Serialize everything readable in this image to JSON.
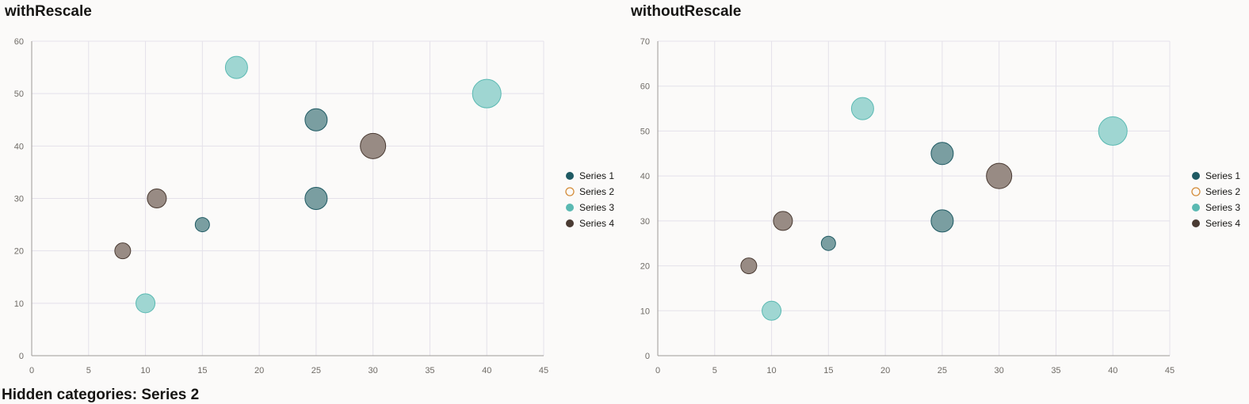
{
  "colors": {
    "grid": "#e4e1ea",
    "axis": "#9e9a96",
    "series": {
      "Series 1": "#1f5a63",
      "Series 2": "#d48d3b",
      "Series 3": "#5ab9b2",
      "Series 4": "#4a3b33"
    },
    "bubble_fill": {
      "Series 1": "#7a9ea1",
      "Series 3": "#9fd6d2",
      "Series 4": "#988b84"
    }
  },
  "footer": {
    "text": "Hidden categories: Series 2"
  },
  "chart_data": [
    {
      "type": "bubble",
      "title": "withRescale",
      "xlim": [
        0,
        45
      ],
      "ylim": [
        0,
        60
      ],
      "x_ticks": [
        "0",
        "5",
        "10",
        "15",
        "20",
        "25",
        "30",
        "35",
        "40",
        "45"
      ],
      "y_ticks": [
        "0",
        "10",
        "20",
        "30",
        "40",
        "50",
        "60"
      ],
      "grid": true,
      "legend_position": "right",
      "legend": [
        "Series 1",
        "Series 2",
        "Series 3",
        "Series 4"
      ],
      "series": [
        {
          "name": "Series 1",
          "points": [
            {
              "x": 15,
              "y": 25,
              "r": 9
            },
            {
              "x": 25,
              "y": 30,
              "r": 14
            },
            {
              "x": 25,
              "y": 45,
              "r": 14
            }
          ]
        },
        {
          "name": "Series 2",
          "points": [],
          "hidden": true
        },
        {
          "name": "Series 3",
          "points": [
            {
              "x": 10,
              "y": 10,
              "r": 12
            },
            {
              "x": 18,
              "y": 55,
              "r": 14
            },
            {
              "x": 40,
              "y": 50,
              "r": 18
            }
          ]
        },
        {
          "name": "Series 4",
          "points": [
            {
              "x": 8,
              "y": 20,
              "r": 10
            },
            {
              "x": 11,
              "y": 30,
              "r": 12
            },
            {
              "x": 30,
              "y": 40,
              "r": 16
            }
          ]
        }
      ]
    },
    {
      "type": "bubble",
      "title": "withoutRescale",
      "xlim": [
        0,
        45
      ],
      "ylim": [
        0,
        70
      ],
      "x_ticks": [
        "0",
        "5",
        "10",
        "15",
        "20",
        "25",
        "30",
        "35",
        "40",
        "45"
      ],
      "y_ticks": [
        "0",
        "10",
        "20",
        "30",
        "40",
        "50",
        "60",
        "70"
      ],
      "grid": true,
      "legend_position": "right",
      "legend": [
        "Series 1",
        "Series 2",
        "Series 3",
        "Series 4"
      ],
      "series": [
        {
          "name": "Series 1",
          "points": [
            {
              "x": 15,
              "y": 25,
              "r": 9
            },
            {
              "x": 25,
              "y": 30,
              "r": 14
            },
            {
              "x": 25,
              "y": 45,
              "r": 14
            }
          ]
        },
        {
          "name": "Series 2",
          "points": [],
          "hidden": true
        },
        {
          "name": "Series 3",
          "points": [
            {
              "x": 10,
              "y": 10,
              "r": 12
            },
            {
              "x": 18,
              "y": 55,
              "r": 14
            },
            {
              "x": 40,
              "y": 50,
              "r": 18
            }
          ]
        },
        {
          "name": "Series 4",
          "points": [
            {
              "x": 8,
              "y": 20,
              "r": 10
            },
            {
              "x": 11,
              "y": 30,
              "r": 12
            },
            {
              "x": 30,
              "y": 40,
              "r": 16
            }
          ]
        }
      ]
    }
  ]
}
